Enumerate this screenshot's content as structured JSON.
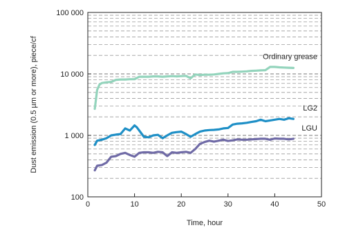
{
  "chart_data": {
    "type": "line",
    "xlabel": "Time, hour",
    "ylabel": "Dust emission (0.5 µm or more), piece/cf",
    "xlim": [
      0,
      50
    ],
    "ylim": [
      100,
      100000
    ],
    "yscale": "log",
    "xticks": [
      0,
      10,
      20,
      30,
      40,
      50
    ],
    "yticks": [
      100,
      1000,
      10000,
      100000
    ],
    "ytick_labels": [
      "100",
      "1 000",
      "10 000",
      "100 000"
    ],
    "grid": "horizontal dashed minor lines",
    "legend": "labels next to series",
    "series": [
      {
        "name": "Ordinary grease",
        "color": "#93d4bc",
        "x": [
          1.5,
          2,
          2.5,
          3,
          4,
          5,
          6,
          7,
          8,
          9,
          10,
          11,
          12,
          13,
          14,
          15,
          16,
          17,
          18,
          19,
          20,
          21,
          22,
          23,
          24,
          25,
          26,
          27,
          28,
          29,
          30,
          31,
          32,
          33,
          34,
          35,
          36,
          37,
          38,
          39,
          40,
          41,
          42,
          43,
          44
        ],
        "y": [
          2700,
          5500,
          6700,
          7100,
          7300,
          7400,
          8000,
          8100,
          8100,
          8200,
          8200,
          9000,
          9000,
          9000,
          9100,
          9100,
          9000,
          9100,
          9200,
          9100,
          9200,
          9300,
          8500,
          9800,
          9600,
          9700,
          9700,
          9800,
          10000,
          10200,
          10300,
          10800,
          10800,
          10900,
          11000,
          11200,
          11300,
          11400,
          11500,
          13000,
          13000,
          12800,
          12700,
          12600,
          12500
        ]
      },
      {
        "name": "LG2",
        "color": "#1e8fc6",
        "x": [
          1.5,
          2,
          3,
          4,
          5,
          6,
          7,
          8,
          9,
          10,
          10.5,
          11,
          12,
          13,
          14,
          15,
          16,
          17,
          18,
          19,
          20,
          21,
          22,
          23,
          24,
          25,
          26,
          27,
          28,
          29,
          30,
          31,
          32,
          33,
          34,
          35,
          36,
          37,
          38,
          39,
          40,
          41,
          42,
          43,
          44
        ],
        "y": [
          700,
          820,
          850,
          900,
          1000,
          1030,
          1050,
          1300,
          1200,
          1450,
          1350,
          1200,
          950,
          930,
          1000,
          1020,
          900,
          1000,
          1100,
          1130,
          1150,
          1050,
          950,
          1050,
          1150,
          1200,
          1220,
          1230,
          1250,
          1300,
          1320,
          1500,
          1550,
          1570,
          1600,
          1650,
          1700,
          1800,
          1700,
          1750,
          1800,
          1850,
          1800,
          1900,
          1850
        ]
      },
      {
        "name": "LGU",
        "color": "#6f6aa6",
        "x": [
          1.5,
          2,
          3,
          4,
          5,
          6,
          7,
          8,
          9,
          10,
          11,
          12,
          13,
          14,
          15,
          16,
          17,
          18,
          19,
          20,
          21,
          22,
          23,
          24,
          25,
          26,
          27,
          28,
          29,
          30,
          31,
          32,
          33,
          34,
          35,
          36,
          37,
          38,
          39,
          40,
          41,
          42,
          43,
          44
        ],
        "y": [
          270,
          320,
          330,
          360,
          450,
          460,
          500,
          520,
          480,
          450,
          520,
          530,
          530,
          520,
          540,
          530,
          460,
          530,
          520,
          530,
          540,
          520,
          600,
          730,
          780,
          820,
          790,
          820,
          850,
          810,
          830,
          860,
          850,
          850,
          860,
          870,
          880,
          880,
          850,
          890,
          880,
          880,
          860,
          880
        ]
      }
    ]
  }
}
